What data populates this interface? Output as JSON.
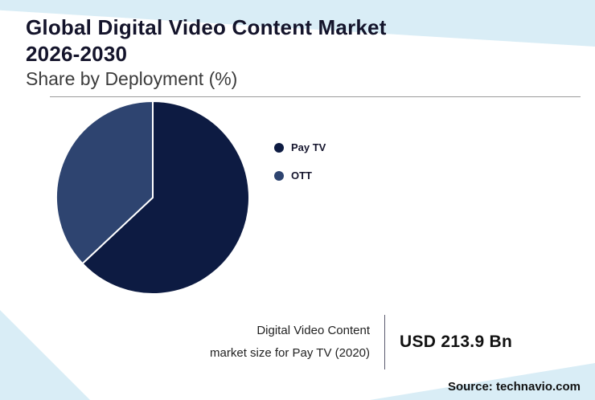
{
  "header": {
    "title_line1": "Global Digital Video Content Market",
    "title_line2": "2026-2030",
    "subtitle": "Share by Deployment (%)"
  },
  "chart_data": {
    "type": "pie",
    "title": "Global Digital Video Content Market 2026-2030 — Share by Deployment (%)",
    "labels": [
      "Pay TV",
      "OTT"
    ],
    "values": [
      63,
      37
    ],
    "colors": [
      "#0d1b42",
      "#2e4470"
    ],
    "start_angle_deg": 0,
    "direction": "clockwise",
    "legend_position": "right",
    "slice_border_color": "#ffffff"
  },
  "stat": {
    "caption_line1": "Digital Video Content",
    "caption_line2": "market size for Pay TV (2020)",
    "value": "USD 213.9 Bn"
  },
  "source": "Source: technavio.com",
  "colors": {
    "accent_light": "#d9edf6",
    "pay_tv": "#0d1b42",
    "ott": "#2e4470",
    "title_text": "#14142b"
  }
}
